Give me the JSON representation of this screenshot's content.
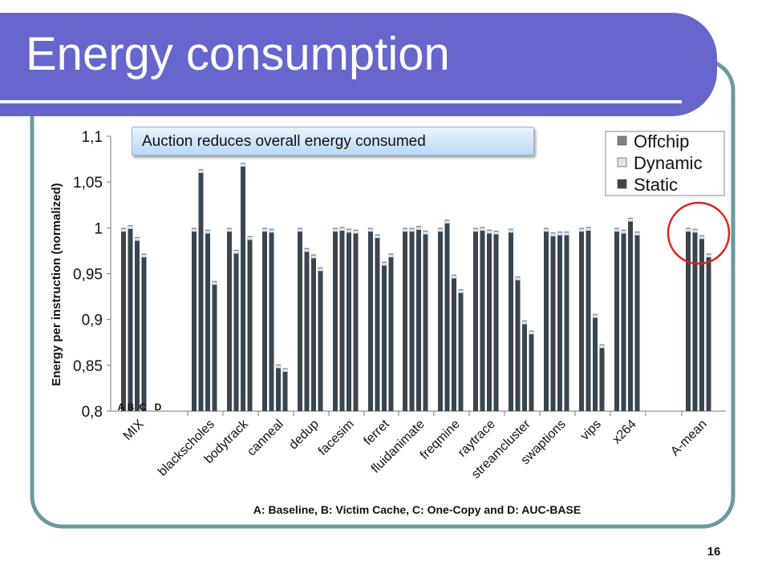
{
  "slide": {
    "title": "Energy consumption",
    "callout": "Auction reduces overall energy consumed",
    "page_number": "16",
    "colors": {
      "title_band": "#6666cc",
      "frame": "#6b9b9b",
      "highlight_circle": "#e02020"
    },
    "highlight_circle_target": "A-mean"
  },
  "chart_data": {
    "type": "bar",
    "stacking": "stacked",
    "ylabel": "Energy per instruction (normalized)",
    "xlabel": "A: Baseline, B: Victim Cache, C: One-Copy and D: AUC-BASE",
    "ylim": [
      0.8,
      1.1
    ],
    "yticks": [
      "0,8",
      "0,85",
      "0,9",
      "0,95",
      "1",
      "1,05",
      "1,1"
    ],
    "grid": false,
    "legend_position": "top-right",
    "bar_letters": [
      "A",
      "B",
      "C",
      "D"
    ],
    "categories": [
      "MIX",
      "blackscholes",
      "bodytrack",
      "canneal",
      "dedup",
      "facesim",
      "ferret",
      "fluidanimate",
      "freqmine",
      "raytrace",
      "streamcluster",
      "swaptions",
      "vips",
      "x264",
      "A-mean"
    ],
    "totals": [
      [
        1.0,
        1.003,
        0.99,
        0.972
      ],
      [
        1.0,
        1.064,
        0.998,
        0.942
      ],
      [
        1.0,
        0.976,
        1.071,
        0.991
      ],
      [
        1.0,
        0.999,
        0.851,
        0.847
      ],
      [
        1.0,
        0.978,
        0.971,
        0.957
      ],
      [
        1.0,
        1.001,
        0.999,
        0.998
      ],
      [
        1.0,
        0.993,
        0.963,
        0.972
      ],
      [
        1.0,
        1.0,
        1.002,
        0.997
      ],
      [
        1.0,
        1.009,
        0.949,
        0.933
      ],
      [
        1.0,
        1.001,
        0.998,
        0.997
      ],
      [
        0.999,
        0.947,
        0.899,
        0.888
      ],
      [
        1.0,
        0.995,
        0.996,
        0.996
      ],
      [
        1.0,
        1.001,
        0.906,
        0.873
      ],
      [
        1.0,
        0.998,
        1.011,
        0.996
      ],
      [
        1.0,
        0.999,
        0.992,
        0.972
      ]
    ],
    "dynamic_share": 0.003,
    "offchip_share": 0.001,
    "series": [
      {
        "name": "Offchip",
        "color": "#808080"
      },
      {
        "name": "Dynamic",
        "color": "#d6e6f2"
      },
      {
        "name": "Static",
        "color": "#3b4550"
      }
    ]
  }
}
